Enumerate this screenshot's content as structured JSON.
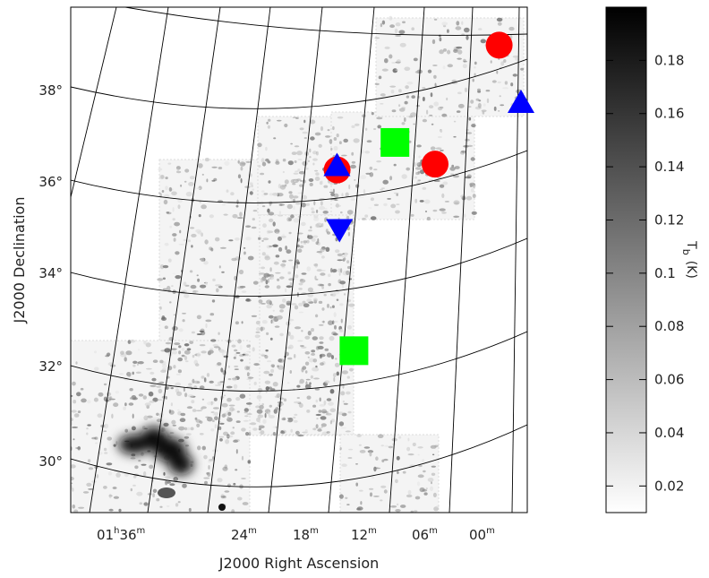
{
  "chart_data": {
    "type": "heatmap",
    "description_axes": {
      "xlabel": "J2000 Right Ascension",
      "ylabel": "J2000 Declination"
    },
    "ra_ticks": [
      {
        "h": "01",
        "m": "36",
        "label_h": "01",
        "label_m": "36",
        "u_h": "h",
        "u_m": "m",
        "full": true
      },
      {
        "m": "24",
        "label_m": "24",
        "u_m": "m",
        "full": false
      },
      {
        "m": "18",
        "label_m": "18",
        "u_m": "m",
        "full": false
      },
      {
        "m": "12",
        "label_m": "12",
        "u_m": "m",
        "full": false
      },
      {
        "m": "06",
        "label_m": "06",
        "u_m": "m",
        "full": false
      },
      {
        "m": "00",
        "label_m": "00",
        "u_m": "m",
        "full": false
      }
    ],
    "dec_ticks": [
      "30°",
      "32°",
      "34°",
      "36°",
      "38°"
    ],
    "colorbar": {
      "label_main": "T",
      "label_sub": "b",
      "label_unit": "(K)",
      "ticks": [
        "0.02",
        "0.04",
        "0.06",
        "0.08",
        "0.1",
        "0.12",
        "0.14",
        "0.16",
        "0.18"
      ],
      "range": [
        0.01,
        0.2
      ],
      "colormap": "grayscale (white to black)"
    },
    "markers": [
      {
        "shape": "circle",
        "color": "#ff0000",
        "ra": "00h59m",
        "dec": 39.2
      },
      {
        "shape": "circle",
        "color": "#ff0000",
        "ra": "01h06m",
        "dec": 36.5
      },
      {
        "shape": "circle",
        "color": "#ff0000",
        "ra": "01h16m",
        "dec": 36.2
      },
      {
        "shape": "triangle-up",
        "color": "#0000ff",
        "ra": "00h57m",
        "dec": 38.0
      },
      {
        "shape": "triangle-up",
        "color": "#0000ff",
        "ra": "01h16m",
        "dec": 36.3
      },
      {
        "shape": "triangle-down",
        "color": "#0000ff",
        "ra": "01h16m",
        "dec": 34.9
      },
      {
        "shape": "square",
        "color": "#00ff00",
        "ra": "01h10m",
        "dec": 36.9
      },
      {
        "shape": "square",
        "color": "#00ff00",
        "ra": "01h15m",
        "dec": 32.3
      }
    ]
  }
}
